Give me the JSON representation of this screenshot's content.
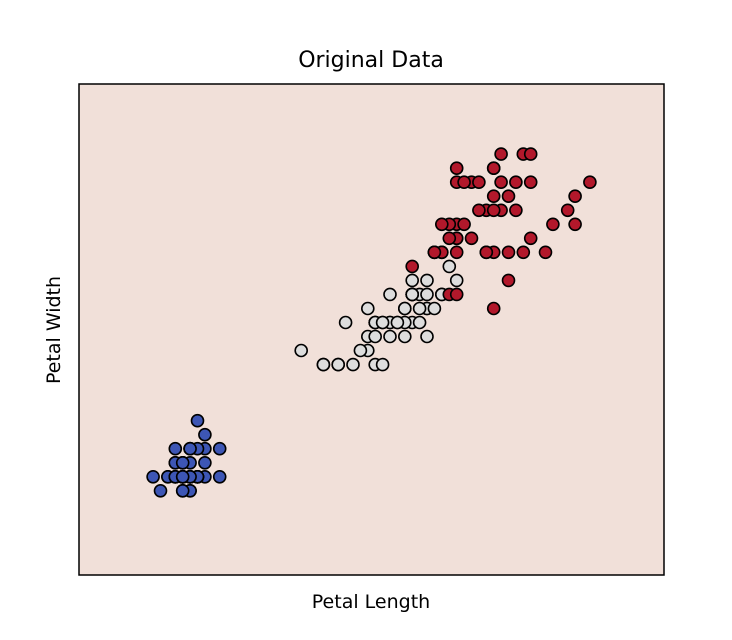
{
  "chart_data": {
    "type": "scatter",
    "title": "Original Data",
    "xlabel": "Petal Length",
    "ylabel": "Petal Width",
    "xlim": [
      0.0,
      7.9
    ],
    "ylim": [
      -0.5,
      3.0
    ],
    "ticks_visible": false,
    "grid": false,
    "legend": "none",
    "background_color": "#f1e0d9",
    "series": [
      {
        "color": "#3d56b5",
        "points": [
          [
            1.4,
            0.2
          ],
          [
            1.4,
            0.2
          ],
          [
            1.3,
            0.2
          ],
          [
            1.5,
            0.2
          ],
          [
            1.4,
            0.2
          ],
          [
            1.7,
            0.4
          ],
          [
            1.4,
            0.3
          ],
          [
            1.5,
            0.2
          ],
          [
            1.4,
            0.2
          ],
          [
            1.5,
            0.1
          ],
          [
            1.5,
            0.2
          ],
          [
            1.6,
            0.2
          ],
          [
            1.4,
            0.1
          ],
          [
            1.1,
            0.1
          ],
          [
            1.2,
            0.2
          ],
          [
            1.5,
            0.4
          ],
          [
            1.3,
            0.4
          ],
          [
            1.4,
            0.3
          ],
          [
            1.7,
            0.3
          ],
          [
            1.5,
            0.3
          ],
          [
            1.7,
            0.2
          ],
          [
            1.5,
            0.4
          ],
          [
            1.0,
            0.2
          ],
          [
            1.7,
            0.5
          ],
          [
            1.9,
            0.2
          ],
          [
            1.6,
            0.2
          ],
          [
            1.6,
            0.4
          ],
          [
            1.5,
            0.2
          ],
          [
            1.4,
            0.2
          ],
          [
            1.6,
            0.2
          ],
          [
            1.6,
            0.2
          ],
          [
            1.5,
            0.4
          ],
          [
            1.5,
            0.1
          ],
          [
            1.4,
            0.2
          ],
          [
            1.5,
            0.2
          ],
          [
            1.2,
            0.2
          ],
          [
            1.3,
            0.2
          ],
          [
            1.4,
            0.1
          ],
          [
            1.3,
            0.2
          ],
          [
            1.5,
            0.2
          ],
          [
            1.3,
            0.3
          ],
          [
            1.3,
            0.3
          ],
          [
            1.3,
            0.2
          ],
          [
            1.6,
            0.6
          ],
          [
            1.9,
            0.4
          ],
          [
            1.4,
            0.3
          ],
          [
            1.6,
            0.2
          ],
          [
            1.4,
            0.2
          ],
          [
            1.5,
            0.2
          ],
          [
            1.4,
            0.2
          ]
        ]
      },
      {
        "color": "#dddddd",
        "points": [
          [
            4.7,
            1.4
          ],
          [
            4.5,
            1.5
          ],
          [
            4.9,
            1.5
          ],
          [
            4.0,
            1.3
          ],
          [
            4.6,
            1.5
          ],
          [
            4.5,
            1.3
          ],
          [
            4.7,
            1.6
          ],
          [
            3.3,
            1.0
          ],
          [
            4.6,
            1.3
          ],
          [
            3.9,
            1.4
          ],
          [
            3.5,
            1.0
          ],
          [
            4.2,
            1.5
          ],
          [
            4.0,
            1.0
          ],
          [
            4.7,
            1.4
          ],
          [
            3.6,
            1.3
          ],
          [
            4.4,
            1.4
          ],
          [
            4.5,
            1.5
          ],
          [
            4.1,
            1.0
          ],
          [
            4.5,
            1.5
          ],
          [
            3.9,
            1.1
          ],
          [
            4.8,
            1.8
          ],
          [
            4.0,
            1.3
          ],
          [
            4.9,
            1.5
          ],
          [
            4.7,
            1.2
          ],
          [
            4.3,
            1.3
          ],
          [
            4.4,
            1.4
          ],
          [
            4.8,
            1.4
          ],
          [
            5.0,
            1.7
          ],
          [
            4.5,
            1.5
          ],
          [
            3.5,
            1.0
          ],
          [
            3.8,
            1.1
          ],
          [
            3.7,
            1.0
          ],
          [
            3.9,
            1.2
          ],
          [
            5.1,
            1.6
          ],
          [
            4.5,
            1.5
          ],
          [
            4.5,
            1.6
          ],
          [
            4.7,
            1.5
          ],
          [
            4.4,
            1.3
          ],
          [
            4.1,
            1.3
          ],
          [
            4.0,
            1.3
          ],
          [
            4.4,
            1.2
          ],
          [
            4.6,
            1.4
          ],
          [
            4.0,
            1.2
          ],
          [
            3.3,
            1.0
          ],
          [
            4.2,
            1.3
          ],
          [
            4.2,
            1.2
          ],
          [
            4.2,
            1.3
          ],
          [
            4.3,
            1.3
          ],
          [
            3.0,
            1.1
          ],
          [
            4.1,
            1.3
          ]
        ]
      },
      {
        "color": "#b2182b",
        "points": [
          [
            6.0,
            2.5
          ],
          [
            5.1,
            1.9
          ],
          [
            5.9,
            2.1
          ],
          [
            5.6,
            1.8
          ],
          [
            5.8,
            2.2
          ],
          [
            6.6,
            2.1
          ],
          [
            4.5,
            1.7
          ],
          [
            6.3,
            1.8
          ],
          [
            5.8,
            1.8
          ],
          [
            6.1,
            2.5
          ],
          [
            5.1,
            2.0
          ],
          [
            5.3,
            1.9
          ],
          [
            5.5,
            2.1
          ],
          [
            5.0,
            2.0
          ],
          [
            5.1,
            2.4
          ],
          [
            5.3,
            2.3
          ],
          [
            5.5,
            1.8
          ],
          [
            6.7,
            2.2
          ],
          [
            6.9,
            2.3
          ],
          [
            5.0,
            1.5
          ],
          [
            5.7,
            2.3
          ],
          [
            4.9,
            2.0
          ],
          [
            6.7,
            2.0
          ],
          [
            4.9,
            1.8
          ],
          [
            5.7,
            2.1
          ],
          [
            6.0,
            1.8
          ],
          [
            4.8,
            1.8
          ],
          [
            4.9,
            1.8
          ],
          [
            5.6,
            2.1
          ],
          [
            5.8,
            1.6
          ],
          [
            6.1,
            1.9
          ],
          [
            6.4,
            2.0
          ],
          [
            5.6,
            2.2
          ],
          [
            5.1,
            1.5
          ],
          [
            5.6,
            1.4
          ],
          [
            6.1,
            2.3
          ],
          [
            5.6,
            2.4
          ],
          [
            5.5,
            1.8
          ],
          [
            4.8,
            1.8
          ],
          [
            5.4,
            2.1
          ],
          [
            5.6,
            2.4
          ],
          [
            5.1,
            2.3
          ],
          [
            5.1,
            1.9
          ],
          [
            5.9,
            2.3
          ],
          [
            5.7,
            2.5
          ],
          [
            5.2,
            2.3
          ],
          [
            5.0,
            1.9
          ],
          [
            5.2,
            2.0
          ],
          [
            5.4,
            2.3
          ],
          [
            5.1,
            1.8
          ]
        ]
      }
    ]
  }
}
